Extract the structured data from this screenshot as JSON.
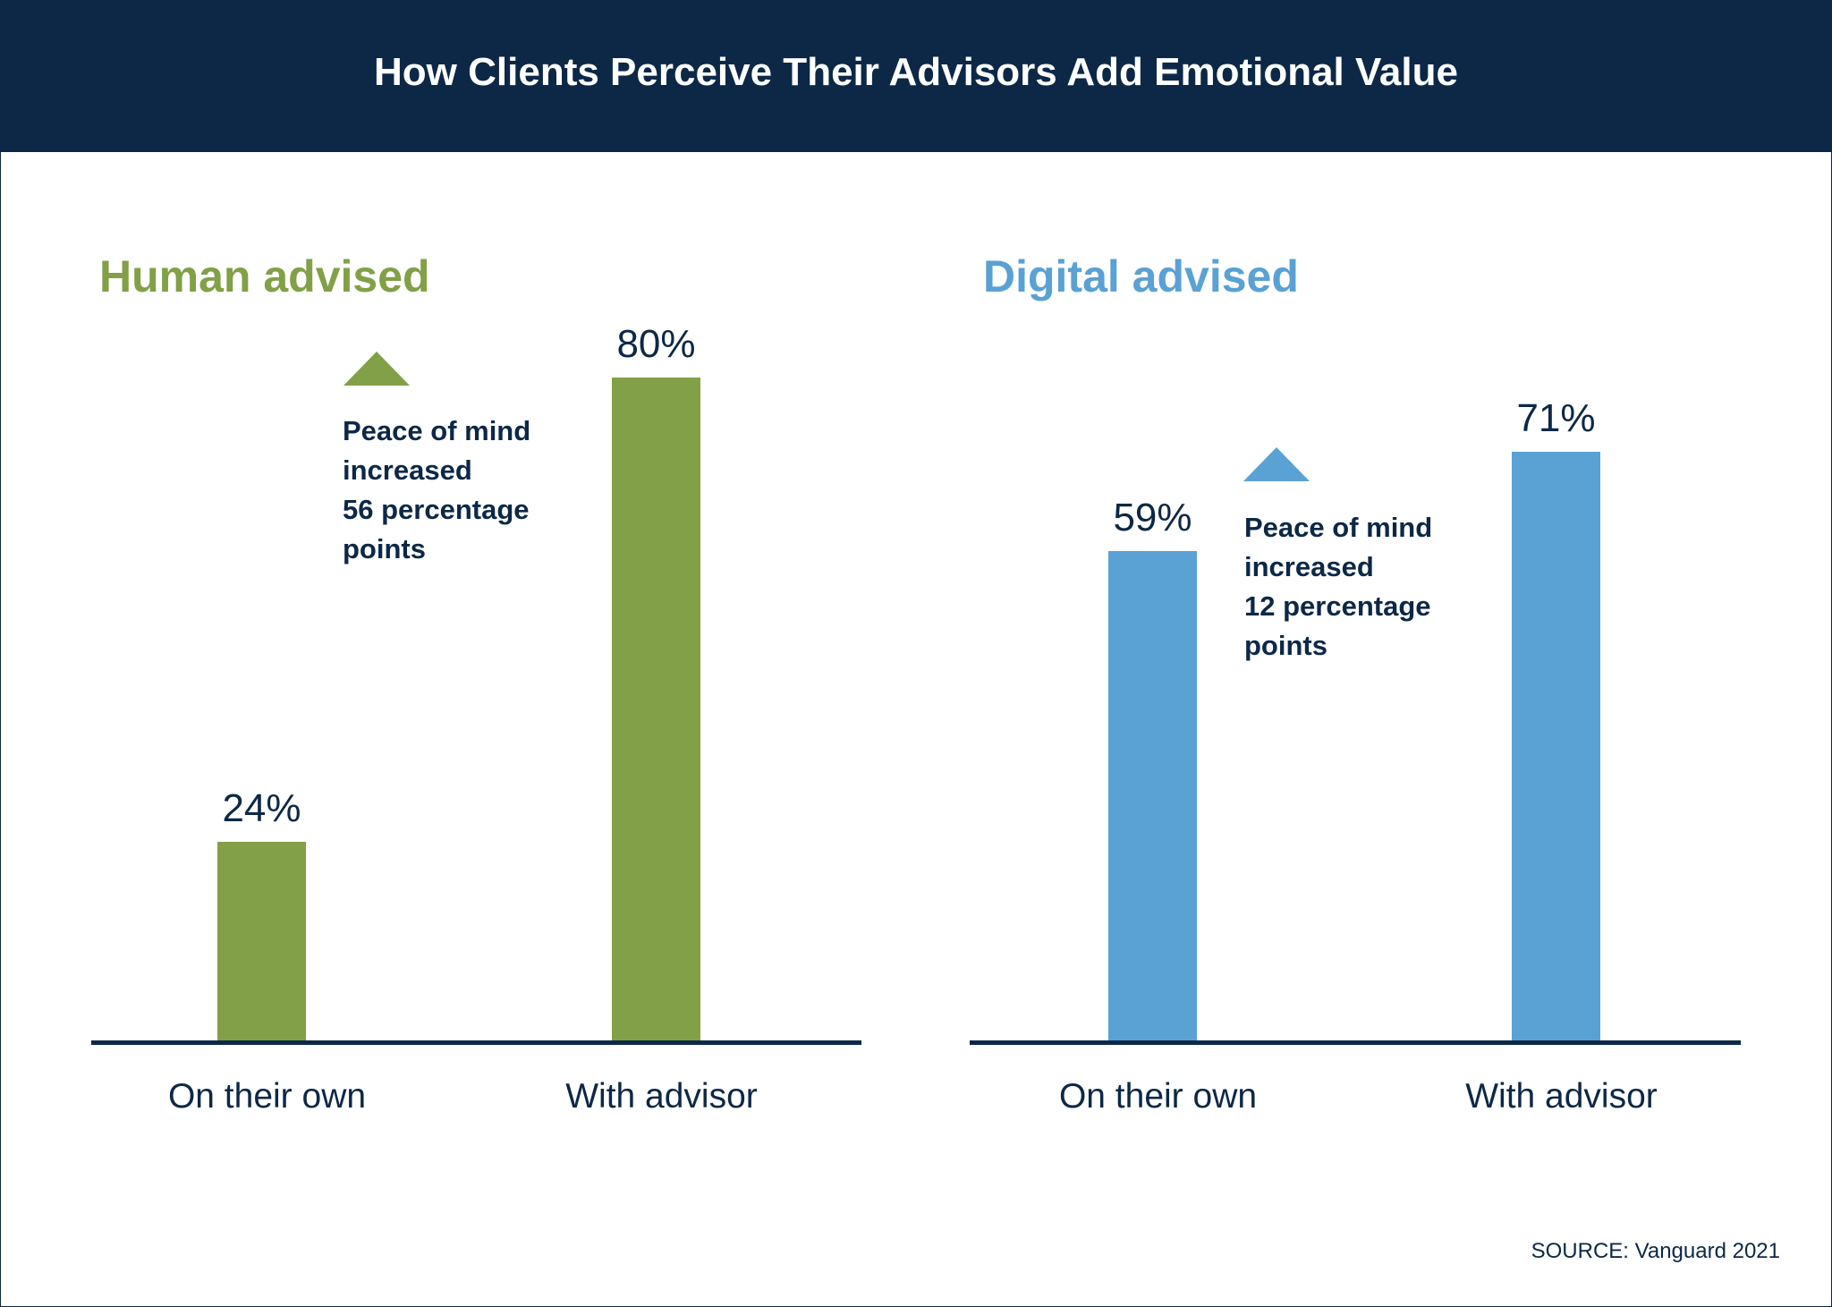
{
  "title": "How Clients Perceive Their Advisors Add Emotional Value",
  "source": "SOURCE: Vanguard 2021",
  "colors": {
    "header": "#0d2847",
    "text": "#0d2847",
    "human": "#82a047",
    "digital": "#5aa1d4"
  },
  "chart_data": [
    {
      "type": "bar",
      "title": "Human advised",
      "categories": [
        "On their own",
        "With advisor"
      ],
      "values": [
        24,
        80
      ],
      "value_labels": [
        "24%",
        "80%"
      ],
      "color": "#82a047",
      "annotation": {
        "icon": "triangle-up-icon",
        "lines": [
          "Peace of mind",
          "increased",
          "56 percentage",
          "points"
        ]
      }
    },
    {
      "type": "bar",
      "title": "Digital advised",
      "categories": [
        "On their own",
        "With advisor"
      ],
      "values": [
        59,
        71
      ],
      "value_labels": [
        "59%",
        "71%"
      ],
      "color": "#5aa1d4",
      "annotation": {
        "icon": "triangle-up-icon",
        "lines": [
          "Peace of mind",
          "increased",
          "12 percentage",
          "points"
        ]
      }
    }
  ]
}
